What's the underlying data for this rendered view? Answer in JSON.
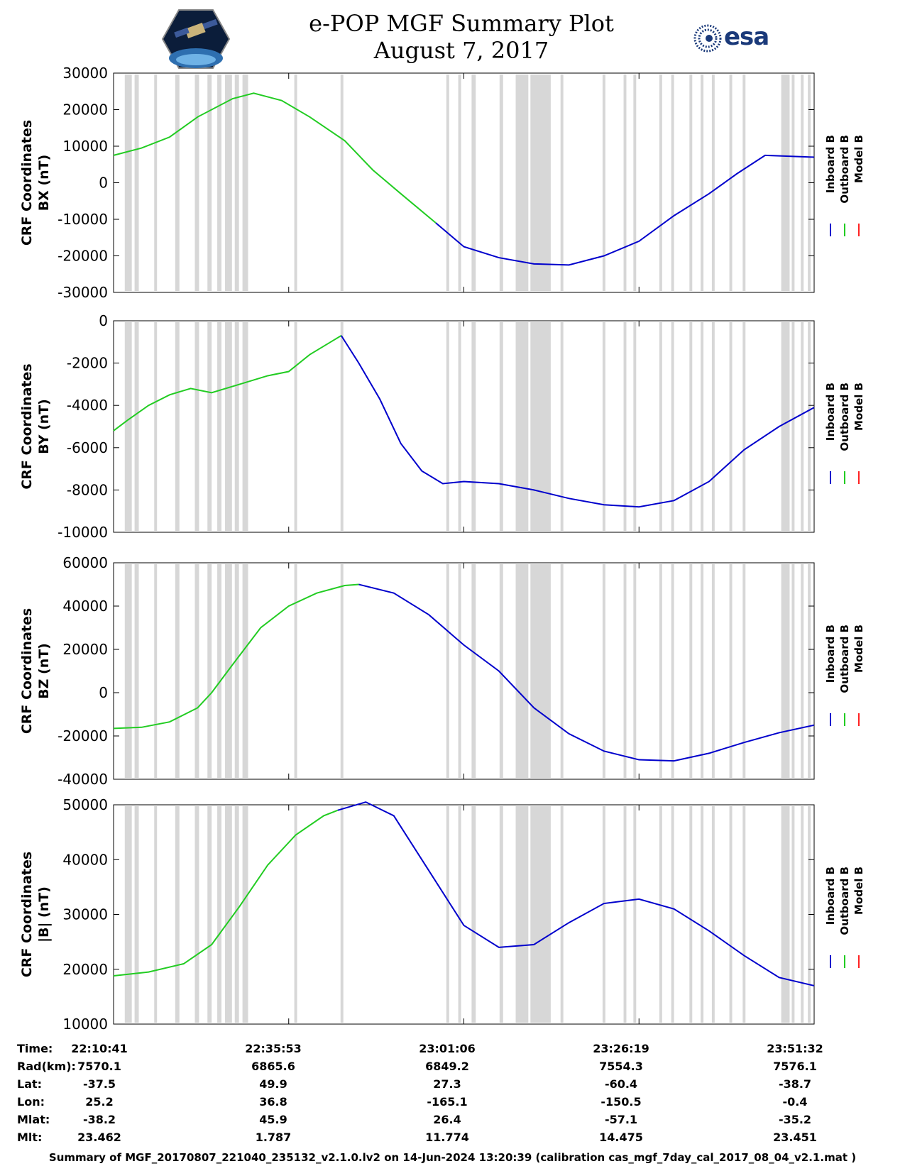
{
  "header": {
    "title_line1": "e-POP MGF Summary Plot",
    "title_line2": "August 7, 2017",
    "left_logo": "cassiope-mission-logo",
    "right_logo_text": "esa",
    "esa_color": "#1b3a7a"
  },
  "colors": {
    "inboard": "#0000cc",
    "outboard": "#22cc22",
    "model": "#ff2222",
    "gap_band": "#d7d7d7"
  },
  "chart_data": [
    {
      "type": "line",
      "ylabel": "CRF Coordinates",
      "ylabel2": "BX (nT)",
      "ylim": [
        -30000,
        30000
      ],
      "yticks": [
        -30000,
        -20000,
        -10000,
        0,
        10000,
        20000,
        30000
      ],
      "xlim": [
        0,
        100
      ],
      "legend": [
        "Inboard B",
        "Outboard B",
        "Model B"
      ],
      "series": [
        {
          "name": "Outboard B",
          "color": "green",
          "x": [
            0,
            4,
            8,
            12,
            17,
            20,
            24,
            28,
            33,
            37,
            41,
            46
          ],
          "y": [
            7500,
            9500,
            12500,
            18000,
            23000,
            24500,
            22500,
            18000,
            11500,
            3500,
            -3000,
            -11000
          ]
        },
        {
          "name": "Inboard B",
          "color": "blue",
          "x": [
            46,
            50,
            55,
            60,
            65,
            70,
            75,
            80,
            85,
            89,
            93,
            100
          ],
          "y": [
            -11000,
            -17500,
            -20500,
            -22200,
            -22500,
            -20000,
            -16000,
            -9000,
            -3000,
            2500,
            7500,
            7000
          ]
        }
      ]
    },
    {
      "type": "line",
      "ylabel": "CRF Coordinates",
      "ylabel2": "BY (nT)",
      "ylim": [
        -10000,
        0
      ],
      "yticks": [
        -10000,
        -8000,
        -6000,
        -4000,
        -2000,
        0
      ],
      "xlim": [
        0,
        100
      ],
      "legend": [
        "Inboard B",
        "Outboard B",
        "Model B"
      ],
      "series": [
        {
          "name": "Outboard B",
          "color": "green",
          "x": [
            0,
            2,
            5,
            8,
            11,
            14,
            18,
            22,
            25,
            28,
            31,
            32.5
          ],
          "y": [
            -5200,
            -4700,
            -4000,
            -3500,
            -3200,
            -3400,
            -3000,
            -2600,
            -2400,
            -1600,
            -1000,
            -700
          ]
        },
        {
          "name": "Inboard B",
          "color": "blue",
          "x": [
            32.5,
            35,
            38,
            41,
            44,
            47,
            50,
            55,
            60,
            65,
            70,
            75,
            80,
            85,
            90,
            95,
            100
          ],
          "y": [
            -700,
            -2000,
            -3700,
            -5800,
            -7100,
            -7700,
            -7600,
            -7700,
            -8000,
            -8400,
            -8700,
            -8800,
            -8500,
            -7600,
            -6100,
            -5000,
            -4100
          ]
        }
      ]
    },
    {
      "type": "line",
      "ylabel": "CRF Coordinates",
      "ylabel2": "BZ (nT)",
      "ylim": [
        -40000,
        60000
      ],
      "yticks": [
        -40000,
        -20000,
        0,
        20000,
        40000,
        60000
      ],
      "xlim": [
        0,
        100
      ],
      "legend": [
        "Inboard B",
        "Outboard B",
        "Model B"
      ],
      "series": [
        {
          "name": "Outboard B",
          "color": "green",
          "x": [
            0,
            4,
            8,
            12,
            14,
            17,
            21,
            25,
            29,
            33,
            35
          ],
          "y": [
            -16500,
            -16000,
            -13500,
            -7000,
            0,
            13000,
            30000,
            40000,
            46000,
            49500,
            50000
          ]
        },
        {
          "name": "Inboard B",
          "color": "blue",
          "x": [
            35,
            40,
            45,
            50,
            55,
            60,
            65,
            70,
            75,
            80,
            85,
            90,
            95,
            100
          ],
          "y": [
            50000,
            46000,
            36000,
            22000,
            10000,
            -7000,
            -19000,
            -27000,
            -31000,
            -31500,
            -28000,
            -23000,
            -18500,
            -15000
          ]
        }
      ]
    },
    {
      "type": "line",
      "ylabel": "CRF Coordinates",
      "ylabel2": "|B| (nT)",
      "ylim": [
        10000,
        50000
      ],
      "yticks": [
        10000,
        20000,
        30000,
        40000,
        50000
      ],
      "xlim": [
        0,
        100
      ],
      "legend": [
        "Inboard B",
        "Outboard B",
        "Model B"
      ],
      "series": [
        {
          "name": "Outboard B",
          "color": "green",
          "x": [
            0,
            5,
            10,
            14,
            18,
            22,
            26,
            30,
            32
          ],
          "y": [
            18800,
            19500,
            21000,
            24500,
            31500,
            39000,
            44500,
            48000,
            49000
          ]
        },
        {
          "name": "Inboard B",
          "color": "blue",
          "x": [
            32,
            36,
            40,
            45,
            50,
            55,
            60,
            65,
            70,
            75,
            80,
            85,
            90,
            95,
            100
          ],
          "y": [
            49000,
            50500,
            48000,
            38000,
            28000,
            24000,
            24500,
            28500,
            32000,
            32800,
            31000,
            27000,
            22500,
            18500,
            17000
          ]
        }
      ]
    }
  ],
  "gap_bands": [
    [
      1.6,
      2.6
    ],
    [
      3.0,
      3.6
    ],
    [
      5.8,
      6.2
    ],
    [
      8.8,
      9.4
    ],
    [
      11.6,
      12.2
    ],
    [
      13.4,
      14.0
    ],
    [
      14.8,
      15.4
    ],
    [
      15.9,
      16.9
    ],
    [
      17.3,
      17.9
    ],
    [
      18.4,
      19.2
    ],
    [
      25.8,
      26.2
    ],
    [
      32.4,
      32.8
    ],
    [
      47.5,
      47.9
    ],
    [
      49.2,
      49.6
    ],
    [
      51.1,
      51.7
    ],
    [
      55.1,
      55.6
    ],
    [
      57.4,
      59.2
    ],
    [
      59.5,
      62.4
    ],
    [
      63.8,
      64.2
    ],
    [
      69.8,
      70.2
    ],
    [
      72.8,
      73.2
    ],
    [
      74.2,
      74.6
    ],
    [
      77.9,
      78.3
    ],
    [
      79.6,
      80.0
    ],
    [
      82.2,
      82.6
    ],
    [
      83.8,
      84.2
    ],
    [
      85.4,
      85.8
    ],
    [
      87.9,
      88.3
    ],
    [
      89.8,
      90.2
    ],
    [
      95.3,
      96.5
    ],
    [
      96.8,
      97.2
    ],
    [
      98.1,
      98.5
    ],
    [
      99.1,
      99.5
    ]
  ],
  "ephemeris": {
    "rows": [
      {
        "label": "Time:",
        "values": [
          "22:10:41",
          "22:35:53",
          "23:01:06",
          "23:26:19",
          "23:51:32"
        ]
      },
      {
        "label": "Rad(km):",
        "values": [
          "7570.1",
          "6865.6",
          "6849.2",
          "7554.3",
          "7576.1"
        ]
      },
      {
        "label": "Lat:",
        "values": [
          "-37.5",
          "49.9",
          "27.3",
          "-60.4",
          "-38.7"
        ]
      },
      {
        "label": "Lon:",
        "values": [
          "25.2",
          "36.8",
          "-165.1",
          "-150.5",
          "-0.4"
        ]
      },
      {
        "label": "Mlat:",
        "values": [
          "-38.2",
          "45.9",
          "26.4",
          "-57.1",
          "-35.2"
        ]
      },
      {
        "label": "Mlt:",
        "values": [
          "23.462",
          "1.787",
          "11.774",
          "14.475",
          "23.451"
        ]
      }
    ]
  },
  "footer": {
    "text": "Summary of MGF_20170807_221040_235132_v2.1.0.lv2 on 14-Jun-2024 13:20:39 (calibration cas_mgf_7day_cal_2017_08_04_v2.1.mat )"
  }
}
